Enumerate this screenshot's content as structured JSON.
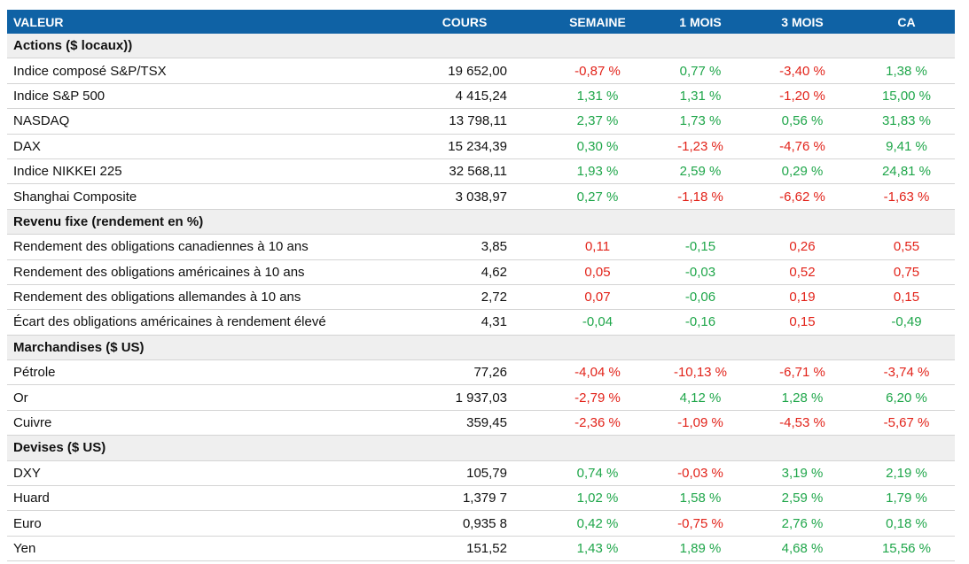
{
  "header": {
    "columns": [
      "VALEUR",
      "COURS",
      "SEMAINE",
      "1 MOIS",
      "3 MOIS",
      "CA"
    ]
  },
  "gain_color": "#1fa64a",
  "loss_color": "#e2231a",
  "sections": [
    {
      "title": "Actions ($ locaux))",
      "rows": [
        {
          "label": "Indice composé S&P/TSX",
          "cours": "19 652,00",
          "values": [
            "-0,87 %",
            "0,77 %",
            "-3,40 %",
            "1,38 %"
          ]
        },
        {
          "label": "Indice S&P 500",
          "cours": "4 415,24",
          "values": [
            "1,31 %",
            "1,31 %",
            "-1,20 %",
            "15,00 %"
          ]
        },
        {
          "label": "NASDAQ",
          "cours": "13 798,11",
          "values": [
            "2,37 %",
            "1,73 %",
            "0,56 %",
            "31,83 %"
          ]
        },
        {
          "label": "DAX",
          "cours": "15 234,39",
          "values": [
            "0,30 %",
            "-1,23 %",
            "-4,76 %",
            "9,41 %"
          ]
        },
        {
          "label": "Indice NIKKEI 225",
          "cours": "32 568,11",
          "values": [
            "1,93 %",
            "2,59 %",
            "0,29 %",
            "24,81 %"
          ]
        },
        {
          "label": "Shanghai Composite",
          "cours": "3 038,97",
          "values": [
            "0,27 %",
            "-1,18 %",
            "-6,62 %",
            "-1,63 %"
          ]
        }
      ]
    },
    {
      "title": "Revenu fixe (rendement en %)",
      "rise_is_loss": true,
      "rows": [
        {
          "label": "Rendement des obligations canadiennes à 10 ans",
          "cours": "3,85",
          "values": [
            "0,11",
            "-0,15",
            "0,26",
            "0,55"
          ]
        },
        {
          "label": "Rendement des obligations américaines à 10 ans",
          "cours": "4,62",
          "values": [
            "0,05",
            "-0,03",
            "0,52",
            "0,75"
          ]
        },
        {
          "label": "Rendement des obligations allemandes à 10 ans",
          "cours": "2,72",
          "values": [
            "0,07",
            "-0,06",
            "0,19",
            "0,15"
          ]
        },
        {
          "label": "Écart des obligations américaines à rendement élevé",
          "cours": "4,31",
          "values": [
            "-0,04",
            "-0,16",
            "0,15",
            "-0,49"
          ]
        }
      ]
    },
    {
      "title": "Marchandises ($ US)",
      "rows": [
        {
          "label": "Pétrole",
          "cours": "77,26",
          "values": [
            "-4,04 %",
            "-10,13 %",
            "-6,71 %",
            "-3,74 %"
          ]
        },
        {
          "label": "Or",
          "cours": "1 937,03",
          "values": [
            "-2,79 %",
            "4,12 %",
            "1,28 %",
            "6,20 %"
          ]
        },
        {
          "label": "Cuivre",
          "cours": "359,45",
          "values": [
            "-2,36 %",
            "-1,09 %",
            "-4,53 %",
            "-5,67 %"
          ]
        }
      ]
    },
    {
      "title": "Devises ($ US)",
      "rows": [
        {
          "label": "DXY",
          "cours": "105,79",
          "values": [
            "0,74 %",
            "-0,03 %",
            "3,19 %",
            "2,19 %"
          ]
        },
        {
          "label": "Huard",
          "cours": "1,379 7",
          "values": [
            "1,02 %",
            "1,58 %",
            "2,59 %",
            "1,79 %"
          ]
        },
        {
          "label": "Euro",
          "cours": "0,935 8",
          "values": [
            "0,42 %",
            "-0,75 %",
            "2,76 %",
            "0,18 %"
          ]
        },
        {
          "label": "Yen",
          "cours": "151,52",
          "values": [
            "1,43 %",
            "1,89 %",
            "4,68 %",
            "15,56 %"
          ]
        }
      ]
    }
  ]
}
